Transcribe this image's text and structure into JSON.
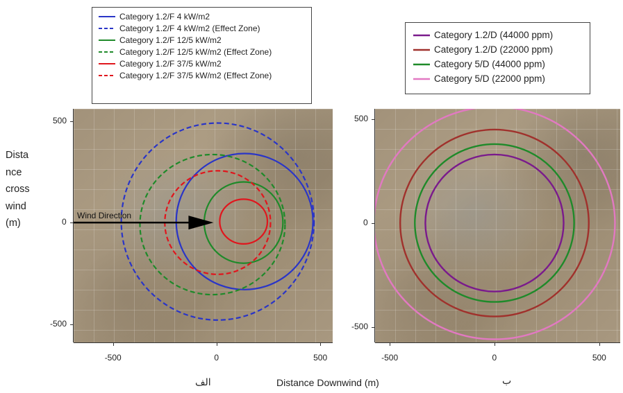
{
  "chart_data": [
    {
      "type": "line",
      "panel_label": "الف",
      "y_axis_label_lines": [
        "Dista",
        "nce",
        "cross",
        "wind",
        "(m)"
      ],
      "x_ticks": [
        -500,
        0,
        500
      ],
      "y_ticks": [
        500,
        0,
        -500
      ],
      "xlim": [
        -690,
        560
      ],
      "ylim": [
        -590,
        560
      ],
      "background": "satellite imagery",
      "grid": true,
      "legend_position": "top",
      "annotation": "Wind Direction",
      "arrow": {
        "from": [
          -700,
          0
        ],
        "to": [
          -15,
          0
        ]
      },
      "series": [
        {
          "name": "Category 1.2/F 4 kW/m2",
          "style": "solid",
          "color": "#2a35c7",
          "cx": 135,
          "cy": 5,
          "rx": 330,
          "ry": 335
        },
        {
          "name": "Category 1.2/F 4 kW/m2 (Effect Zone)",
          "style": "dashed",
          "color": "#2a35c7",
          "cx": 5,
          "cy": 5,
          "rx": 465,
          "ry": 485
        },
        {
          "name": "Category 1.2/F 12/5 kW/m2",
          "style": "solid",
          "color": "#1f8a2a",
          "cx": 130,
          "cy": 0,
          "rx": 190,
          "ry": 200
        },
        {
          "name": "Category 1.2/F 12/5 kW/m2 (Effect Zone)",
          "style": "dashed",
          "color": "#1f8a2a",
          "cx": -20,
          "cy": -10,
          "rx": 350,
          "ry": 345
        },
        {
          "name": "Category 1.2/F 37/5 kW/m2",
          "style": "solid",
          "color": "#e0161d",
          "cx": 130,
          "cy": 5,
          "rx": 115,
          "ry": 110
        },
        {
          "name": "Category 1.2/F 37/5 kW/m2 (Effect Zone)",
          "style": "dashed",
          "color": "#e0161d",
          "cx": 5,
          "cy": 0,
          "rx": 255,
          "ry": 255
        }
      ]
    },
    {
      "type": "line",
      "panel_label": "ب",
      "x_ticks": [
        -500,
        0,
        500
      ],
      "y_ticks": [
        500,
        0,
        -500
      ],
      "xlim": [
        -570,
        600
      ],
      "ylim": [
        -575,
        550
      ],
      "background": "satellite imagery",
      "grid": true,
      "legend_position": "top",
      "series": [
        {
          "name": "Category 1.2/D (44000 ppm)",
          "style": "solid",
          "color": "#7a1a8c",
          "cx": 0,
          "cy": 0,
          "rx": 330,
          "ry": 330
        },
        {
          "name": "Category 1.2/D (22000 ppm)",
          "style": "solid",
          "color": "#a0312c",
          "cx": 0,
          "cy": 0,
          "rx": 450,
          "ry": 450
        },
        {
          "name": "Category 5/D (44000 ppm)",
          "style": "solid",
          "color": "#1f8a2a",
          "cx": 0,
          "cy": 0,
          "rx": 380,
          "ry": 380
        },
        {
          "name": "Category 5/D (22000 ppm)",
          "style": "solid",
          "color": "#e279c2",
          "cx": 0,
          "cy": 0,
          "rx": 575,
          "ry": 560
        }
      ]
    }
  ],
  "x_axis_label": "Distance Downwind (m)"
}
